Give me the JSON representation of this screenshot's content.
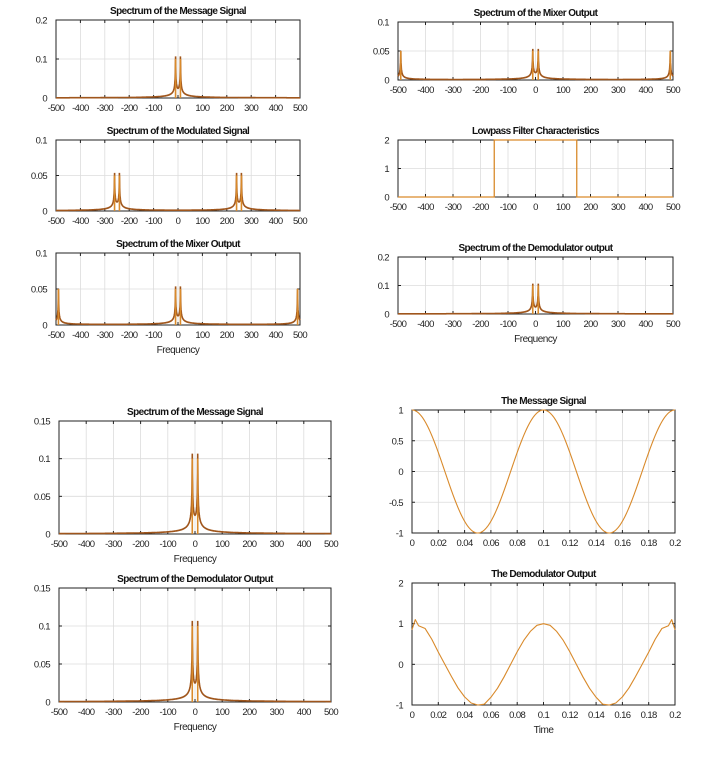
{
  "colors": {
    "line": "#d98a2b",
    "dark": "#a0561c"
  },
  "chart_data": [
    {
      "type": "line",
      "title": "Spectrum of the Message Signal",
      "xlabel": "",
      "xlim": [
        -500,
        500
      ],
      "ylim": [
        0,
        0.2
      ],
      "xticks": [
        "-500",
        "-400",
        "-300",
        "-200",
        "-100",
        "0",
        "100",
        "200",
        "300",
        "400",
        "500"
      ],
      "yticks": [
        "0",
        "0.1",
        "0.2"
      ],
      "grid": true,
      "peaks": [
        {
          "freq": -10,
          "amplitude": 0.1
        },
        {
          "freq": 10,
          "amplitude": 0.1
        }
      ]
    },
    {
      "type": "line",
      "title": "Spectrum of the Modulated  Signal",
      "xlabel": "",
      "xlim": [
        -500,
        500
      ],
      "ylim": [
        0,
        0.1
      ],
      "xticks": [
        "-500",
        "-400",
        "-300",
        "-200",
        "-100",
        "0",
        "100",
        "200",
        "300",
        "400",
        "500"
      ],
      "yticks": [
        "0",
        "0.05",
        "0.1"
      ],
      "grid": true,
      "peaks": [
        {
          "freq": -260,
          "amplitude": 0.05
        },
        {
          "freq": -240,
          "amplitude": 0.05
        },
        {
          "freq": 240,
          "amplitude": 0.05
        },
        {
          "freq": 260,
          "amplitude": 0.05
        }
      ]
    },
    {
      "type": "line",
      "title": "Spectrum of the Mixer Output",
      "xlabel": "Frequency",
      "xlim": [
        -500,
        500
      ],
      "ylim": [
        0,
        0.1
      ],
      "xticks": [
        "-500",
        "-400",
        "-300",
        "-200",
        "-100",
        "0",
        "100",
        "200",
        "300",
        "400",
        "500"
      ],
      "yticks": [
        "0",
        "0.05",
        "0.1"
      ],
      "grid": true,
      "peaks": [
        {
          "freq": -490,
          "amplitude": 0.05
        },
        {
          "freq": -10,
          "amplitude": 0.05
        },
        {
          "freq": 10,
          "amplitude": 0.05
        },
        {
          "freq": 490,
          "amplitude": 0.05
        }
      ]
    },
    {
      "type": "line",
      "title": "Spectrum of the Mixer Output",
      "xlabel": "",
      "xlim": [
        -500,
        500
      ],
      "ylim": [
        0,
        0.1
      ],
      "xticks": [
        "-500",
        "-400",
        "-300",
        "-200",
        "-100",
        "0",
        "100",
        "200",
        "300",
        "400",
        "500"
      ],
      "yticks": [
        "0",
        "0.05",
        "0.1"
      ],
      "grid": true,
      "peaks": [
        {
          "freq": -490,
          "amplitude": 0.05
        },
        {
          "freq": -10,
          "amplitude": 0.05
        },
        {
          "freq": 10,
          "amplitude": 0.05
        },
        {
          "freq": 490,
          "amplitude": 0.05
        }
      ]
    },
    {
      "type": "line",
      "title": "Lowpass Filter Characteristics",
      "xlabel": "",
      "xlim": [
        -500,
        500
      ],
      "ylim": [
        0,
        2
      ],
      "xticks": [
        "-500",
        "-400",
        "-300",
        "-200",
        "-100",
        "0",
        "100",
        "200",
        "300",
        "400",
        "500"
      ],
      "yticks": [
        "0",
        "1",
        "2"
      ],
      "grid": true,
      "filter": {
        "cutoff_low": -150,
        "cutoff_high": 150,
        "gain": 2
      }
    },
    {
      "type": "line",
      "title": "Spectrum of the Demodulator output",
      "xlabel": "Frequency",
      "xlim": [
        -500,
        500
      ],
      "ylim": [
        0,
        0.2
      ],
      "xticks": [
        "-500",
        "-400",
        "-300",
        "-200",
        "-100",
        "0",
        "100",
        "200",
        "300",
        "400",
        "500"
      ],
      "yticks": [
        "0",
        "0.1",
        "0.2"
      ],
      "grid": true,
      "peaks": [
        {
          "freq": -10,
          "amplitude": 0.1
        },
        {
          "freq": 10,
          "amplitude": 0.1
        }
      ]
    },
    {
      "type": "line",
      "title": "Spectrum of the Message Signal",
      "xlabel": "Frequency",
      "xlim": [
        -500,
        500
      ],
      "ylim": [
        0,
        0.15
      ],
      "xticks": [
        "-500",
        "-400",
        "-300",
        "-200",
        "-100",
        "0",
        "100",
        "200",
        "300",
        "400",
        "500"
      ],
      "yticks": [
        "0",
        "0.05",
        "0.1",
        "0.15"
      ],
      "grid": true,
      "peaks": [
        {
          "freq": -10,
          "amplitude": 0.1
        },
        {
          "freq": 10,
          "amplitude": 0.1
        }
      ]
    },
    {
      "type": "line",
      "title": "Spectrum of the Demodulator Output",
      "xlabel": "Frequency",
      "xlim": [
        -500,
        500
      ],
      "ylim": [
        0,
        0.15
      ],
      "xticks": [
        "-500",
        "-400",
        "-300",
        "-200",
        "-100",
        "0",
        "100",
        "200",
        "300",
        "400",
        "500"
      ],
      "yticks": [
        "0",
        "0.05",
        "0.1",
        "0.15"
      ],
      "grid": true,
      "peaks": [
        {
          "freq": -10,
          "amplitude": 0.1
        },
        {
          "freq": 10,
          "amplitude": 0.1
        }
      ]
    },
    {
      "type": "line",
      "title": "The Message Signal",
      "xlabel": "",
      "xlim": [
        0,
        0.2
      ],
      "ylim": [
        -1,
        1
      ],
      "xticks": [
        "0",
        "0.02",
        "0.04",
        "0.06",
        "0.08",
        "0.1",
        "0.12",
        "0.14",
        "0.16",
        "0.18",
        "0.2"
      ],
      "yticks": [
        "-1",
        "-0.5",
        "0",
        "0.5",
        "1"
      ],
      "grid": true,
      "cosine": {
        "amplitude": 1,
        "frequency_hz": 10
      }
    },
    {
      "type": "line",
      "title": "The Demodulator Output",
      "xlabel": "Time",
      "xlim": [
        0,
        0.2
      ],
      "ylim": [
        -1,
        2
      ],
      "xticks": [
        "0",
        "0.02",
        "0.04",
        "0.06",
        "0.08",
        "0.1",
        "0.12",
        "0.14",
        "0.16",
        "0.18",
        "0.2"
      ],
      "yticks": [
        "-1",
        "0",
        "1",
        "2"
      ],
      "grid": true,
      "x": [
        0,
        0.0025,
        0.005,
        0.01,
        0.015,
        0.02,
        0.025,
        0.03,
        0.035,
        0.04,
        0.045,
        0.05,
        0.055,
        0.06,
        0.065,
        0.07,
        0.075,
        0.08,
        0.085,
        0.09,
        0.095,
        0.1,
        0.105,
        0.11,
        0.115,
        0.12,
        0.125,
        0.13,
        0.135,
        0.14,
        0.145,
        0.15,
        0.155,
        0.16,
        0.165,
        0.17,
        0.175,
        0.18,
        0.185,
        0.19,
        0.195,
        0.1975,
        0.2
      ],
      "y": [
        0.85,
        1.1,
        0.95,
        0.88,
        0.62,
        0.3,
        0.0,
        -0.3,
        -0.58,
        -0.8,
        -0.95,
        -1,
        -0.98,
        -0.81,
        -0.59,
        -0.31,
        0,
        0.31,
        0.59,
        0.81,
        0.96,
        1,
        0.96,
        0.81,
        0.59,
        0.31,
        0,
        -0.31,
        -0.59,
        -0.81,
        -0.98,
        -1,
        -0.95,
        -0.8,
        -0.58,
        -0.3,
        0.0,
        0.3,
        0.62,
        0.88,
        0.95,
        1.1,
        0.85
      ]
    }
  ]
}
